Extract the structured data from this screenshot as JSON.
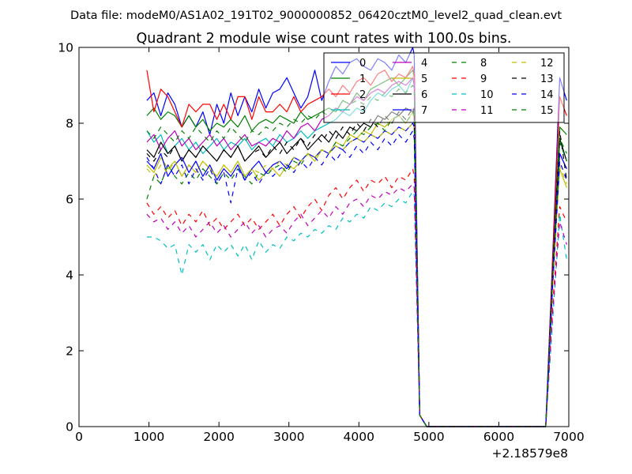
{
  "figure": {
    "suptitle": "Data file: modeM0/AS1A02_191T02_9000000852_06420cztM0_level2_quad_clean.evt"
  },
  "chart_data": {
    "type": "line",
    "title": "Quadrant 2 module wise count rates with 100.0s bins.",
    "xlabel": "",
    "ylabel": "",
    "x_offset_label": "+2.18579e8",
    "xlim": [
      0,
      7000
    ],
    "ylim": [
      0,
      10
    ],
    "xticks": [
      "0",
      "1000",
      "2000",
      "3000",
      "4000",
      "5000",
      "6000",
      "7000"
    ],
    "yticks": [
      "0",
      "2",
      "4",
      "6",
      "8",
      "10"
    ],
    "grid": false,
    "legend_position": "top-right",
    "legend_columns": 4,
    "x": [
      970,
      1070,
      1170,
      1270,
      1370,
      1470,
      1570,
      1670,
      1770,
      1870,
      1970,
      2070,
      2170,
      2270,
      2370,
      2470,
      2570,
      2670,
      2770,
      2870,
      2970,
      3070,
      3170,
      3270,
      3370,
      3470,
      3570,
      3670,
      3770,
      3870,
      3970,
      4070,
      4170,
      4270,
      4370,
      4470,
      4570,
      4670,
      4770,
      4790,
      4870,
      4970,
      5070,
      5170,
      5270,
      5370,
      5470,
      5570,
      5670,
      5770,
      5870,
      5970,
      6070,
      6170,
      6270,
      6370,
      6470,
      6570,
      6670,
      6770,
      6870,
      6970
    ],
    "series": [
      {
        "name": "0",
        "color": "#0000ff",
        "dash": "solid",
        "values": [
          8.6,
          8.8,
          8.2,
          8.8,
          8.5,
          7.9,
          8.2,
          7.9,
          8.3,
          7.7,
          8.5,
          8.0,
          8.8,
          8.2,
          8.7,
          8.3,
          8.9,
          8.4,
          8.8,
          8.9,
          9.2,
          8.8,
          8.4,
          8.7,
          9.4,
          8.6,
          9.1,
          9.5,
          9.3,
          9.6,
          9.7,
          9.5,
          9.4,
          9.7,
          9.6,
          9.4,
          9.8,
          9.6,
          10.0,
          9.8,
          0.3,
          0.0,
          0.0,
          0.0,
          0.0,
          0.0,
          0.0,
          0.0,
          0.0,
          0.0,
          0.0,
          0.0,
          0.0,
          0.0,
          0.0,
          0.0,
          0.0,
          0.0,
          0.0,
          4.5,
          9.2,
          8.6
        ]
      },
      {
        "name": "1",
        "color": "#008000",
        "dash": "solid",
        "values": [
          8.2,
          8.4,
          8.1,
          8.3,
          8.2,
          7.9,
          8.2,
          7.9,
          8.1,
          7.8,
          8.0,
          7.9,
          8.1,
          7.9,
          8.2,
          7.8,
          8.0,
          8.1,
          8.0,
          8.2,
          8.1,
          8.0,
          8.3,
          8.1,
          8.2,
          8.3,
          8.4,
          8.3,
          8.6,
          8.5,
          8.8,
          8.6,
          8.9,
          9.0,
          9.1,
          9.2,
          9.0,
          9.2,
          9.4,
          9.2,
          0.3,
          0.0,
          0.0,
          0.0,
          0.0,
          0.0,
          0.0,
          0.0,
          0.0,
          0.0,
          0.0,
          0.0,
          0.0,
          0.0,
          0.0,
          0.0,
          0.0,
          0.0,
          0.0,
          4.2,
          7.9,
          7.7
        ]
      },
      {
        "name": "2",
        "color": "#ff0000",
        "dash": "solid",
        "values": [
          9.4,
          8.3,
          8.9,
          8.7,
          8.3,
          7.9,
          8.5,
          8.3,
          8.5,
          8.5,
          8.1,
          8.5,
          8.1,
          8.7,
          8.7,
          8.1,
          8.7,
          8.3,
          8.3,
          8.5,
          8.3,
          8.7,
          8.3,
          8.5,
          8.6,
          8.7,
          8.9,
          8.7,
          9.0,
          8.8,
          9.1,
          9.2,
          9.0,
          9.3,
          9.4,
          9.1,
          9.3,
          9.2,
          9.5,
          9.3,
          0.3,
          0.0,
          0.0,
          0.0,
          0.0,
          0.0,
          0.0,
          0.0,
          0.0,
          0.0,
          0.0,
          0.0,
          0.0,
          0.0,
          0.0,
          0.0,
          0.0,
          0.0,
          0.0,
          4.4,
          8.7,
          8.2
        ]
      },
      {
        "name": "3",
        "color": "#00bfbf",
        "dash": "solid",
        "values": [
          7.8,
          7.5,
          7.7,
          7.2,
          7.4,
          7.6,
          7.3,
          7.5,
          7.2,
          7.4,
          7.6,
          7.3,
          7.5,
          7.4,
          7.6,
          7.3,
          7.5,
          7.6,
          7.4,
          7.7,
          7.5,
          7.6,
          7.8,
          7.6,
          7.8,
          7.9,
          8.0,
          8.1,
          8.3,
          8.2,
          8.4,
          8.3,
          8.6,
          8.8,
          8.7,
          8.9,
          9.0,
          8.8,
          9.2,
          9.0,
          0.3,
          0.0,
          0.0,
          0.0,
          0.0,
          0.0,
          0.0,
          0.0,
          0.0,
          0.0,
          0.0,
          0.0,
          0.0,
          0.0,
          0.0,
          0.0,
          0.0,
          0.0,
          0.0,
          4.0,
          7.6,
          7.0
        ]
      },
      {
        "name": "4",
        "color": "#bf00bf",
        "dash": "solid",
        "values": [
          7.5,
          7.7,
          7.3,
          7.6,
          7.8,
          7.4,
          7.6,
          7.3,
          7.5,
          7.7,
          7.4,
          7.6,
          7.3,
          7.5,
          7.7,
          7.4,
          7.5,
          7.4,
          7.6,
          7.5,
          7.8,
          7.6,
          7.9,
          8.0,
          7.8,
          8.1,
          8.2,
          8.4,
          8.3,
          8.5,
          8.7,
          8.6,
          8.8,
          8.9,
          8.8,
          9.0,
          9.1,
          9.0,
          9.2,
          9.0,
          0.3,
          0.0,
          0.0,
          0.0,
          0.0,
          0.0,
          0.0,
          0.0,
          0.0,
          0.0,
          0.0,
          0.0,
          0.0,
          0.0,
          0.0,
          0.0,
          0.0,
          0.0,
          0.0,
          3.9,
          7.2,
          6.8
        ]
      },
      {
        "name": "5",
        "color": "#bfbf00",
        "dash": "solid",
        "values": [
          6.9,
          6.7,
          7.1,
          6.8,
          7.0,
          6.6,
          6.9,
          6.7,
          7.0,
          6.8,
          6.6,
          6.9,
          6.7,
          7.0,
          6.6,
          6.8,
          6.5,
          6.7,
          6.8,
          6.6,
          6.9,
          6.8,
          7.0,
          7.2,
          7.0,
          7.3,
          7.2,
          7.5,
          7.4,
          7.7,
          7.6,
          7.8,
          7.7,
          8.0,
          7.9,
          8.1,
          8.2,
          8.0,
          8.3,
          8.1,
          0.3,
          0.0,
          0.0,
          0.0,
          0.0,
          0.0,
          0.0,
          0.0,
          0.0,
          0.0,
          0.0,
          0.0,
          0.0,
          0.0,
          0.0,
          0.0,
          0.0,
          0.0,
          0.0,
          3.8,
          6.8,
          6.3
        ]
      },
      {
        "name": "6",
        "color": "#000000",
        "dash": "solid",
        "values": [
          7.3,
          7.1,
          7.5,
          7.2,
          7.4,
          7.0,
          7.3,
          7.1,
          7.4,
          7.2,
          7.0,
          7.3,
          7.1,
          7.4,
          7.0,
          7.2,
          7.4,
          7.1,
          7.3,
          7.5,
          7.2,
          7.4,
          7.6,
          7.3,
          7.5,
          7.7,
          7.5,
          7.8,
          7.6,
          7.9,
          7.8,
          8.0,
          7.9,
          8.2,
          8.1,
          8.3,
          8.2,
          8.4,
          8.3,
          8.4,
          0.3,
          0.0,
          0.0,
          0.0,
          0.0,
          0.0,
          0.0,
          0.0,
          0.0,
          0.0,
          0.0,
          0.0,
          0.0,
          0.0,
          0.0,
          0.0,
          0.0,
          0.0,
          0.0,
          4.0,
          7.6,
          7.0
        ]
      },
      {
        "name": "7",
        "color": "#0000ff",
        "dash": "solid",
        "values": [
          7.0,
          6.8,
          7.2,
          6.6,
          6.9,
          7.1,
          6.7,
          7.0,
          6.6,
          6.9,
          6.5,
          6.8,
          6.6,
          6.9,
          6.5,
          6.8,
          7.0,
          6.7,
          6.9,
          7.0,
          6.8,
          7.1,
          7.0,
          7.2,
          7.1,
          7.3,
          7.2,
          7.4,
          7.3,
          7.5,
          7.6,
          7.5,
          7.7,
          7.6,
          7.8,
          7.7,
          7.9,
          7.8,
          8.0,
          7.9,
          0.3,
          0.0,
          0.0,
          0.0,
          0.0,
          0.0,
          0.0,
          0.0,
          0.0,
          0.0,
          0.0,
          0.0,
          0.0,
          0.0,
          0.0,
          0.0,
          0.0,
          0.0,
          0.0,
          3.9,
          7.2,
          6.8
        ]
      },
      {
        "name": "8",
        "color": "#008000",
        "dash": "dashed",
        "values": [
          6.0,
          6.6,
          6.4,
          6.9,
          6.6,
          6.4,
          6.7,
          6.5,
          6.8,
          6.6,
          6.4,
          6.7,
          6.5,
          6.8,
          6.6,
          6.4,
          6.7,
          6.6,
          6.8,
          6.9,
          6.7,
          7.0,
          6.9,
          7.2,
          7.1,
          7.3,
          7.2,
          7.5,
          7.4,
          7.6,
          7.8,
          7.7,
          7.9,
          8.0,
          7.8,
          8.1,
          8.2,
          8.0,
          8.3,
          8.1,
          0.3,
          0.0,
          0.0,
          0.0,
          0.0,
          0.0,
          0.0,
          0.0,
          0.0,
          0.0,
          0.0,
          0.0,
          0.0,
          0.0,
          0.0,
          0.0,
          0.0,
          0.0,
          0.0,
          3.9,
          7.5,
          7.0
        ]
      },
      {
        "name": "9",
        "color": "#ff0000",
        "dash": "dashed",
        "values": [
          5.9,
          5.6,
          5.8,
          5.5,
          5.7,
          5.3,
          5.6,
          5.4,
          5.7,
          5.3,
          5.5,
          5.2,
          5.4,
          5.6,
          5.3,
          5.5,
          5.2,
          5.4,
          5.6,
          5.3,
          5.6,
          5.8,
          5.5,
          5.8,
          6.0,
          5.7,
          6.1,
          6.3,
          6.0,
          6.3,
          6.5,
          6.2,
          6.5,
          6.4,
          6.6,
          6.3,
          6.6,
          6.5,
          6.8,
          6.6,
          0.3,
          0.0,
          0.0,
          0.0,
          0.0,
          0.0,
          0.0,
          0.0,
          0.0,
          0.0,
          0.0,
          0.0,
          0.0,
          0.0,
          0.0,
          0.0,
          0.0,
          0.0,
          0.0,
          3.2,
          5.8,
          5.4
        ]
      },
      {
        "name": "10",
        "color": "#00bfbf",
        "dash": "dashed",
        "values": [
          5.0,
          5.0,
          4.9,
          4.7,
          4.8,
          4.0,
          4.8,
          4.6,
          4.8,
          4.4,
          4.8,
          4.6,
          4.8,
          4.5,
          4.8,
          4.4,
          4.9,
          4.6,
          4.8,
          4.7,
          5.0,
          4.9,
          5.1,
          5.0,
          5.2,
          5.1,
          5.3,
          5.2,
          5.5,
          5.4,
          5.6,
          5.5,
          5.8,
          5.7,
          5.9,
          5.8,
          6.0,
          5.9,
          6.2,
          6.1,
          0.3,
          0.0,
          0.0,
          0.0,
          0.0,
          0.0,
          0.0,
          0.0,
          0.0,
          0.0,
          0.0,
          0.0,
          0.0,
          0.0,
          0.0,
          0.0,
          0.0,
          0.0,
          0.0,
          2.8,
          5.6,
          4.4
        ]
      },
      {
        "name": "11",
        "color": "#bf00bf",
        "dash": "dashed",
        "values": [
          5.6,
          5.4,
          5.5,
          5.2,
          5.4,
          5.1,
          5.3,
          5.0,
          5.2,
          5.4,
          5.1,
          5.3,
          5.0,
          5.2,
          5.4,
          5.1,
          5.3,
          5.0,
          5.2,
          5.3,
          5.1,
          5.4,
          5.6,
          5.3,
          5.5,
          5.7,
          5.5,
          5.8,
          5.6,
          5.9,
          6.0,
          5.8,
          6.1,
          6.0,
          6.2,
          6.1,
          6.3,
          6.2,
          6.4,
          6.3,
          0.3,
          0.0,
          0.0,
          0.0,
          0.0,
          0.0,
          0.0,
          0.0,
          0.0,
          0.0,
          0.0,
          0.0,
          0.0,
          0.0,
          0.0,
          0.0,
          0.0,
          0.0,
          0.0,
          3.0,
          5.4,
          4.8
        ]
      },
      {
        "name": "12",
        "color": "#bfbf00",
        "dash": "dashed",
        "values": [
          6.8,
          6.6,
          6.9,
          6.7,
          7.0,
          6.6,
          6.9,
          6.7,
          7.0,
          6.8,
          6.6,
          6.9,
          6.7,
          7.0,
          6.6,
          6.8,
          6.7,
          6.9,
          6.8,
          7.0,
          6.9,
          7.1,
          7.0,
          7.2,
          7.1,
          7.3,
          7.2,
          7.4,
          7.3,
          7.5,
          7.6,
          7.5,
          7.7,
          7.6,
          7.8,
          7.7,
          7.9,
          7.8,
          8.0,
          7.9,
          0.3,
          0.0,
          0.0,
          0.0,
          0.0,
          0.0,
          0.0,
          0.0,
          0.0,
          0.0,
          0.0,
          0.0,
          0.0,
          0.0,
          0.0,
          0.0,
          0.0,
          0.0,
          0.0,
          3.8,
          6.9,
          6.4
        ]
      },
      {
        "name": "13",
        "color": "#000000",
        "dash": "dashed",
        "values": [
          7.2,
          7.0,
          7.3,
          7.1,
          7.4,
          7.0,
          7.3,
          7.1,
          7.4,
          7.2,
          7.0,
          7.3,
          7.1,
          7.4,
          7.0,
          7.2,
          7.3,
          7.1,
          7.4,
          7.2,
          7.5,
          7.3,
          7.6,
          7.4,
          7.7,
          7.5,
          7.8,
          7.6,
          7.9,
          7.7,
          8.0,
          7.8,
          8.1,
          7.9,
          8.2,
          8.0,
          8.3,
          8.1,
          8.4,
          8.2,
          0.3,
          0.0,
          0.0,
          0.0,
          0.0,
          0.0,
          0.0,
          0.0,
          0.0,
          0.0,
          0.0,
          0.0,
          0.0,
          0.0,
          0.0,
          0.0,
          0.0,
          0.0,
          0.0,
          4.1,
          7.8,
          6.5
        ]
      },
      {
        "name": "14",
        "color": "#0000ff",
        "dash": "dashed",
        "values": [
          7.1,
          6.8,
          6.4,
          6.9,
          6.6,
          6.9,
          6.4,
          6.8,
          6.5,
          6.8,
          6.4,
          6.7,
          5.9,
          6.8,
          6.5,
          6.7,
          6.4,
          6.7,
          6.6,
          6.8,
          6.9,
          6.7,
          7.0,
          6.8,
          7.1,
          6.9,
          7.2,
          7.0,
          7.3,
          7.1,
          7.4,
          7.2,
          7.5,
          7.3,
          7.6,
          7.4,
          7.7,
          7.5,
          7.8,
          7.6,
          0.3,
          0.0,
          0.0,
          0.0,
          0.0,
          0.0,
          0.0,
          0.0,
          0.0,
          0.0,
          0.0,
          0.0,
          0.0,
          0.0,
          0.0,
          0.0,
          0.0,
          0.0,
          0.0,
          3.7,
          7.0,
          6.5
        ]
      },
      {
        "name": "15",
        "color": "#008000",
        "dash": "dashed",
        "values": [
          7.8,
          7.6,
          7.9,
          7.7,
          7.5,
          7.8,
          7.6,
          7.9,
          7.7,
          7.5,
          7.8,
          7.6,
          7.9,
          7.7,
          7.5,
          7.8,
          7.7,
          7.9,
          7.8,
          8.0,
          7.9,
          8.1,
          8.0,
          8.2,
          8.1,
          8.3,
          8.2,
          8.4,
          8.3,
          8.5,
          8.6,
          8.5,
          8.7,
          8.6,
          8.8,
          8.7,
          8.9,
          8.8,
          9.0,
          8.9,
          0.3,
          0.0,
          0.0,
          0.0,
          0.0,
          0.0,
          0.0,
          0.0,
          0.0,
          0.0,
          0.0,
          0.0,
          0.0,
          0.0,
          0.0,
          0.0,
          0.0,
          0.0,
          0.0,
          3.9,
          7.6,
          7.2
        ]
      }
    ]
  }
}
